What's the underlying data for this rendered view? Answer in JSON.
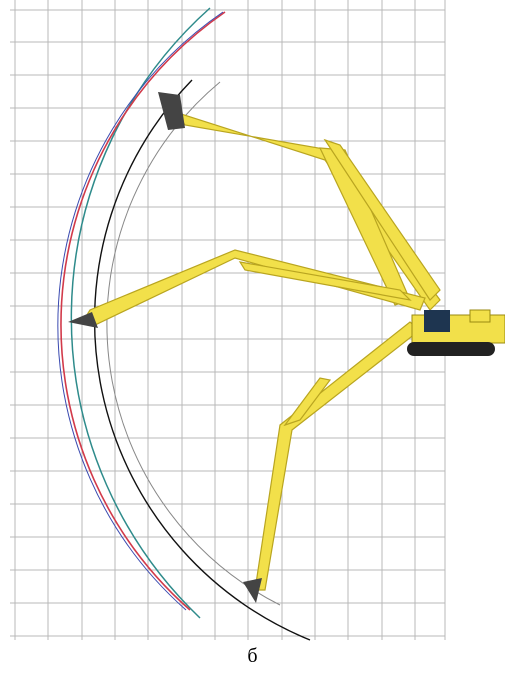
{
  "caption": "б"
}
